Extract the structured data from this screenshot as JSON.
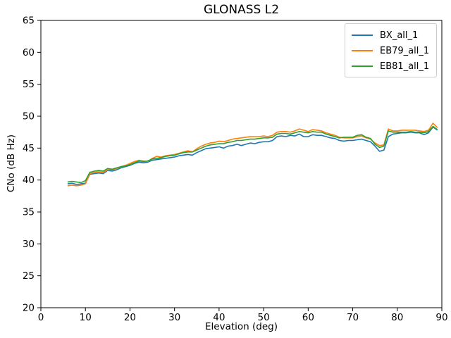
{
  "chart_data": {
    "type": "line",
    "title": "GLONASS L2",
    "xlabel": "Elevation (deg)",
    "ylabel": "CNo (dB Hz)",
    "xlim": [
      0,
      90
    ],
    "ylim": [
      20,
      65
    ],
    "xticks": [
      0,
      10,
      20,
      30,
      40,
      50,
      60,
      70,
      80,
      90
    ],
    "yticks": [
      20,
      25,
      30,
      35,
      40,
      45,
      50,
      55,
      60,
      65
    ],
    "grid": false,
    "legend_position": "upper right",
    "x": [
      6,
      7,
      8,
      9,
      10,
      11,
      12,
      13,
      14,
      15,
      16,
      17,
      18,
      19,
      20,
      21,
      22,
      23,
      24,
      25,
      26,
      27,
      28,
      29,
      30,
      31,
      32,
      33,
      34,
      35,
      36,
      37,
      38,
      39,
      40,
      41,
      42,
      43,
      44,
      45,
      46,
      47,
      48,
      49,
      50,
      51,
      52,
      53,
      54,
      55,
      56,
      57,
      58,
      59,
      60,
      61,
      62,
      63,
      64,
      65,
      66,
      67,
      68,
      69,
      70,
      71,
      72,
      73,
      74,
      75,
      76,
      77,
      78,
      79,
      80,
      81,
      82,
      83,
      84,
      85,
      86,
      87,
      88,
      89
    ],
    "series": [
      {
        "name": "BX_all_1",
        "color": "#1f77b4",
        "values": [
          39.4,
          39.5,
          39.3,
          39.4,
          39.5,
          40.9,
          41.0,
          41.1,
          41.0,
          41.5,
          41.4,
          41.6,
          41.9,
          42.1,
          42.3,
          42.6,
          42.8,
          42.7,
          42.8,
          43.1,
          43.2,
          43.3,
          43.4,
          43.5,
          43.6,
          43.8,
          43.9,
          44.0,
          43.9,
          44.3,
          44.6,
          44.9,
          45.0,
          45.1,
          45.2,
          45.0,
          45.3,
          45.4,
          45.6,
          45.4,
          45.6,
          45.8,
          45.7,
          45.9,
          46.0,
          46.0,
          46.2,
          46.8,
          46.9,
          46.8,
          47.0,
          46.9,
          47.2,
          46.8,
          46.8,
          47.1,
          47.0,
          47.0,
          46.8,
          46.6,
          46.5,
          46.2,
          46.1,
          46.2,
          46.2,
          46.3,
          46.4,
          46.2,
          46.0,
          45.3,
          44.5,
          44.7,
          46.8,
          47.2,
          47.3,
          47.4,
          47.4,
          47.5,
          47.4,
          47.4,
          47.1,
          47.4,
          48.3,
          47.8
        ]
      },
      {
        "name": "EB79_all_1",
        "color": "#ff7f0e",
        "values": [
          39.1,
          39.2,
          39.1,
          39.2,
          39.4,
          41.0,
          41.2,
          41.3,
          41.2,
          41.6,
          41.6,
          41.8,
          42.1,
          42.3,
          42.6,
          42.9,
          43.1,
          43.0,
          42.9,
          43.4,
          43.7,
          43.6,
          43.8,
          43.9,
          44.0,
          44.2,
          44.4,
          44.6,
          44.4,
          44.9,
          45.3,
          45.6,
          45.8,
          45.9,
          46.1,
          46.0,
          46.2,
          46.4,
          46.5,
          46.6,
          46.7,
          46.8,
          46.8,
          46.8,
          46.9,
          46.8,
          47.0,
          47.5,
          47.6,
          47.6,
          47.5,
          47.7,
          48.0,
          47.8,
          47.6,
          47.9,
          47.8,
          47.7,
          47.4,
          47.2,
          47.0,
          46.7,
          46.6,
          46.6,
          46.6,
          46.8,
          46.9,
          46.6,
          46.4,
          45.8,
          45.4,
          45.5,
          48.0,
          47.7,
          47.7,
          47.8,
          47.8,
          47.8,
          47.8,
          47.7,
          47.6,
          47.8,
          48.9,
          48.2
        ]
      },
      {
        "name": "EB81_all_1",
        "color": "#2ca02c",
        "values": [
          39.7,
          39.8,
          39.7,
          39.6,
          39.9,
          41.2,
          41.4,
          41.5,
          41.4,
          41.8,
          41.7,
          41.9,
          42.1,
          42.2,
          42.4,
          42.7,
          43.0,
          42.9,
          43.0,
          43.3,
          43.4,
          43.5,
          43.7,
          43.8,
          43.9,
          44.1,
          44.3,
          44.4,
          44.4,
          44.7,
          45.0,
          45.3,
          45.5,
          45.6,
          45.7,
          45.7,
          45.9,
          46.0,
          46.2,
          46.2,
          46.3,
          46.4,
          46.4,
          46.5,
          46.6,
          46.6,
          46.7,
          47.2,
          47.3,
          47.3,
          47.2,
          47.4,
          47.6,
          47.5,
          47.4,
          47.6,
          47.5,
          47.5,
          47.2,
          47.0,
          46.8,
          46.6,
          46.7,
          46.7,
          46.7,
          47.0,
          47.1,
          46.7,
          46.5,
          45.6,
          45.1,
          45.3,
          47.7,
          47.5,
          47.5,
          47.5,
          47.5,
          47.6,
          47.5,
          47.5,
          47.4,
          47.6,
          48.4,
          47.9
        ]
      }
    ]
  }
}
